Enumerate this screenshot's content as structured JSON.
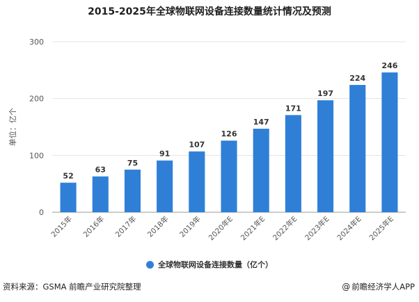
{
  "chart_data": {
    "type": "bar",
    "title": "2015-2025年全球物联网设备连接数量统计情况及预测",
    "ylabel": "单位：亿个",
    "ylim": [
      0,
      300
    ],
    "yticks": [
      0,
      100,
      200,
      300
    ],
    "grid": true,
    "legend_position": "bottom",
    "categories": [
      "2015年",
      "2016年",
      "2017年",
      "2018年",
      "2019年",
      "2020年E",
      "2021年E",
      "2022年E",
      "2023年E",
      "2024年E",
      "2025年E"
    ],
    "series": [
      {
        "name": "全球物联网设备连接数量（亿个）",
        "color": "#2f7fd7",
        "values": [
          52,
          63,
          75,
          91,
          107,
          126,
          147,
          171,
          197,
          224,
          246
        ]
      }
    ]
  },
  "footer": {
    "source": "资料来源：GSMA 前瞻产业研究院整理",
    "brand": "前瞻经济学人APP",
    "brand_icon": "@"
  }
}
